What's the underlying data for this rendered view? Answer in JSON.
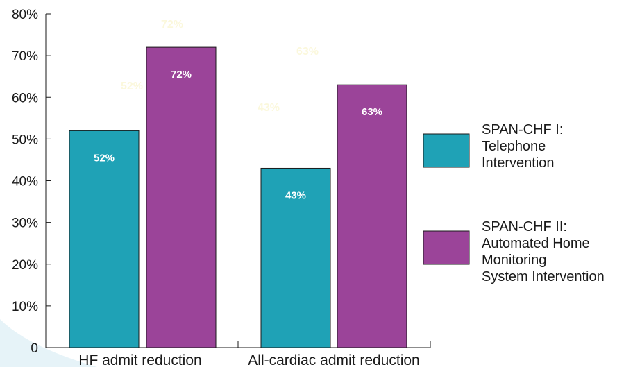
{
  "chart_data": {
    "type": "bar",
    "categories": [
      "HF admit reduction",
      "All-cardiac admit reduction"
    ],
    "series": [
      {
        "name": "SPAN-CHF I: Telephone Intervention",
        "legend_lines": [
          "SPAN-CHF I:",
          "Telephone",
          "Intervention"
        ],
        "color": "#1fa2b6",
        "values": [
          52,
          43
        ],
        "labels": [
          "52%",
          "43%"
        ]
      },
      {
        "name": "SPAN-CHF II: Automated Home Monitoring System Intervention",
        "legend_lines": [
          "SPAN-CHF II:",
          "Automated Home",
          "Monitoring",
          "System Intervention"
        ],
        "color": "#9b4499",
        "values": [
          72,
          63
        ],
        "labels": [
          "72%",
          "63%"
        ]
      }
    ],
    "y_ticks": [
      0,
      10,
      20,
      30,
      40,
      50,
      60,
      70,
      80
    ],
    "y_tick_labels": [
      "0",
      "10%",
      "20%",
      "30%",
      "40%",
      "50%",
      "60%",
      "70%",
      "80%"
    ],
    "ylim": [
      0,
      80
    ],
    "title": "",
    "xlabel": "",
    "ylabel": "",
    "grid": false,
    "legend_position": "right",
    "ghost_labels": [
      "72%",
      "63%",
      "52%",
      "43%"
    ]
  }
}
